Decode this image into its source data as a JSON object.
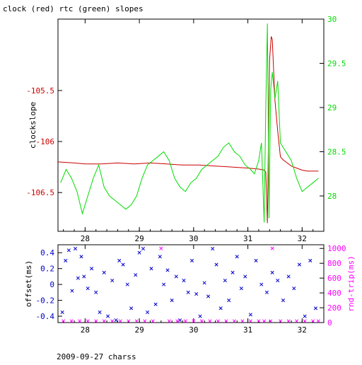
{
  "page_title": "clock (red) rtc (green) slopes",
  "footer_label": "2009-09-27 charss",
  "colors": {
    "clock": "#cc0000",
    "rtc": "#00dd00",
    "offset": "#0000cc",
    "rndtrip": "#ff00ff",
    "axis": "#000000"
  },
  "chart_data": [
    {
      "type": "line",
      "title": "clock (red) rtc (green) slopes",
      "xlim": [
        27.5,
        32.4
      ],
      "x_ticks": [
        28,
        29,
        30,
        31,
        32
      ],
      "left_axis": {
        "label": "clockslope",
        "lim": [
          -106.88,
          -104.8
        ],
        "ticks": [
          -105.5,
          -106,
          -106.5
        ],
        "tick_labels": [
          "-105.5",
          "-106",
          "-106.5"
        ]
      },
      "right_axis": {
        "label": "",
        "lim": [
          27.6,
          30
        ],
        "ticks": [
          28,
          28.5,
          29,
          29.5,
          30
        ],
        "tick_labels": [
          "28",
          "28.5",
          "29",
          "29.5",
          "30"
        ]
      },
      "series": [
        {
          "name": "clock",
          "axis": "left",
          "x": [
            27.5,
            27.8,
            28.0,
            28.3,
            28.6,
            28.9,
            29.2,
            29.5,
            29.8,
            30.1,
            30.4,
            30.7,
            31.0,
            31.2,
            31.3,
            31.33,
            31.36,
            31.38,
            31.4,
            31.43,
            31.45,
            31.5,
            31.55,
            31.6,
            31.65,
            31.7,
            31.8,
            31.9,
            32.0,
            32.1,
            32.3
          ],
          "y": [
            -106.2,
            -106.21,
            -106.22,
            -106.22,
            -106.21,
            -106.22,
            -106.21,
            -106.22,
            -106.23,
            -106.23,
            -106.24,
            -106.25,
            -106.26,
            -106.27,
            -106.28,
            -106.3,
            -106.8,
            -106.0,
            -105.2,
            -104.97,
            -105.0,
            -105.6,
            -105.9,
            -106.15,
            -106.18,
            -106.2,
            -106.24,
            -106.26,
            -106.28,
            -106.29,
            -106.29
          ]
        },
        {
          "name": "rtc",
          "axis": "right",
          "x": [
            27.55,
            27.65,
            27.75,
            27.85,
            27.95,
            28.05,
            28.15,
            28.25,
            28.35,
            28.45,
            28.55,
            28.65,
            28.75,
            28.85,
            28.95,
            29.05,
            29.15,
            29.25,
            29.35,
            29.45,
            29.55,
            29.65,
            29.75,
            29.85,
            29.95,
            30.05,
            30.15,
            30.25,
            30.35,
            30.45,
            30.55,
            30.65,
            30.75,
            30.85,
            30.95,
            31.05,
            31.12,
            31.2,
            31.25,
            31.3,
            31.33,
            31.36,
            31.39,
            31.42,
            31.45,
            31.5,
            31.55,
            31.6,
            31.65,
            31.7,
            31.8,
            31.9,
            32.0,
            32.1,
            32.2,
            32.3
          ],
          "y": [
            28.15,
            28.3,
            28.2,
            28.05,
            27.8,
            28.0,
            28.2,
            28.35,
            28.1,
            28.0,
            27.95,
            27.9,
            27.85,
            27.9,
            28.0,
            28.2,
            28.35,
            28.4,
            28.45,
            28.5,
            28.4,
            28.2,
            28.1,
            28.05,
            28.15,
            28.2,
            28.3,
            28.35,
            28.4,
            28.45,
            28.55,
            28.6,
            28.5,
            28.45,
            28.35,
            28.3,
            28.25,
            28.4,
            28.6,
            27.7,
            29.0,
            29.95,
            27.75,
            29.2,
            29.4,
            29.1,
            29.3,
            28.6,
            28.55,
            28.5,
            28.4,
            28.2,
            28.05,
            28.1,
            28.15,
            28.2
          ]
        }
      ]
    },
    {
      "type": "scatter",
      "xlim": [
        27.5,
        32.4
      ],
      "x_ticks": [
        28,
        29,
        30,
        31,
        32
      ],
      "left_axis": {
        "label": "offset(ms)",
        "lim": [
          -0.48,
          0.5
        ],
        "ticks": [
          0.4,
          0.2,
          0,
          -0.2,
          -0.4
        ],
        "tick_labels": [
          "0.4",
          "0.2",
          "0",
          "-0.2",
          "-0.4"
        ]
      },
      "right_axis": {
        "label": "rnd-trip(ms)",
        "lim": [
          0,
          1050
        ],
        "ticks": [
          0,
          200,
          400,
          600,
          800,
          1000
        ],
        "tick_labels": [
          "0",
          "200",
          "400",
          "600",
          "800",
          "1000"
        ]
      },
      "series": [
        {
          "name": "offset",
          "axis": "left",
          "x": [
            27.58,
            27.64,
            27.7,
            27.76,
            27.82,
            27.87,
            27.93,
            27.98,
            28.05,
            28.12,
            28.2,
            28.27,
            28.35,
            28.42,
            28.5,
            28.57,
            28.63,
            28.7,
            28.78,
            28.85,
            28.93,
            29.0,
            29.07,
            29.15,
            29.22,
            29.3,
            29.38,
            29.45,
            29.52,
            29.6,
            29.68,
            29.75,
            29.82,
            29.9,
            29.97,
            30.05,
            30.12,
            30.2,
            30.27,
            30.35,
            30.42,
            30.5,
            30.58,
            30.65,
            30.72,
            30.8,
            30.88,
            30.95,
            31.05,
            31.15,
            31.25,
            31.35,
            31.45,
            31.55,
            31.65,
            31.75,
            31.85,
            31.95,
            32.05,
            32.15,
            32.25
          ],
          "y": [
            -0.35,
            0.3,
            0.43,
            -0.08,
            0.45,
            0.08,
            0.35,
            0.1,
            -0.05,
            0.2,
            -0.1,
            -0.35,
            0.15,
            -0.4,
            0.05,
            -0.45,
            0.3,
            0.25,
            0.0,
            -0.3,
            0.12,
            0.4,
            0.45,
            -0.35,
            0.2,
            -0.25,
            0.35,
            0.0,
            0.18,
            -0.2,
            0.1,
            -0.45,
            0.05,
            -0.1,
            0.3,
            -0.12,
            -0.4,
            0.02,
            -0.15,
            0.45,
            0.25,
            -0.3,
            0.05,
            -0.2,
            0.15,
            0.35,
            -0.05,
            0.1,
            -0.38,
            0.3,
            0.0,
            -0.1,
            0.15,
            0.05,
            -0.2,
            0.1,
            -0.05,
            0.25,
            -0.4,
            0.3,
            -0.3
          ]
        },
        {
          "name": "rnd-trip",
          "axis": "right",
          "x": [
            27.6,
            27.75,
            27.9,
            28.05,
            28.2,
            28.35,
            28.5,
            28.65,
            28.8,
            28.95,
            29.1,
            29.25,
            29.4,
            29.55,
            29.7,
            29.85,
            30.0,
            30.15,
            30.3,
            30.45,
            30.6,
            30.75,
            30.9,
            31.05,
            31.2,
            31.3,
            31.42,
            31.45,
            31.6,
            31.75,
            31.9,
            32.05,
            32.2,
            32.3
          ],
          "y": [
            20,
            20,
            20,
            20,
            20,
            20,
            20,
            20,
            20,
            20,
            20,
            20,
            1000,
            20,
            20,
            20,
            20,
            20,
            20,
            20,
            20,
            20,
            20,
            20,
            20,
            20,
            20,
            1000,
            20,
            20,
            20,
            20,
            20,
            20
          ]
        }
      ]
    }
  ]
}
